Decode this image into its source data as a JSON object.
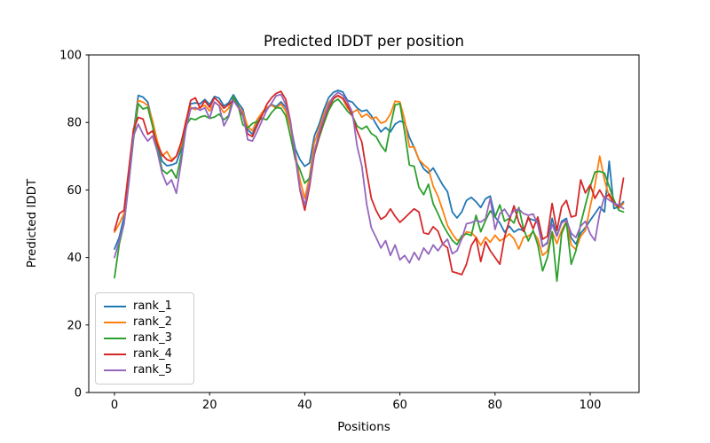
{
  "figure": {
    "title": "Predicted lDDT per position",
    "xlabel": "Positions",
    "ylabel": "Predicted lDDT"
  },
  "chart_data": {
    "type": "line",
    "title": "Predicted lDDT per position",
    "xlabel": "Positions",
    "ylabel": "Predicted lDDT",
    "ylim": [
      0,
      100
    ],
    "xlim": [
      -5.35,
      112.35
    ],
    "x_ticks": [
      0,
      20,
      40,
      60,
      80,
      100
    ],
    "y_ticks": [
      0,
      20,
      40,
      60,
      80,
      100
    ],
    "grid": false,
    "legend_position": "lower left",
    "x": {
      "start": 0,
      "end": 107,
      "step": 1
    },
    "series": [
      {
        "name": "rank_1",
        "color": "#1f77b4",
        "values": [
          42.5,
          46,
          52,
          63,
          77,
          88,
          87.5,
          86,
          80,
          73.5,
          68.5,
          67.2,
          67.4,
          68,
          72,
          80,
          85.5,
          85.8,
          85.5,
          86.8,
          85.3,
          87.7,
          87.2,
          84.9,
          85.8,
          88.2,
          85.8,
          83.9,
          77.9,
          76.5,
          79.7,
          82.5,
          84.1,
          85.3,
          84.7,
          86.1,
          84.5,
          79.4,
          72.2,
          69,
          67,
          68,
          75.9,
          79.4,
          83.7,
          87.3,
          88.9,
          89.5,
          89,
          86.5,
          86,
          84.3,
          83.3,
          83.7,
          82,
          79.5,
          77.2,
          78.5,
          77.2,
          79.5,
          80.4,
          80,
          75.6,
          72.5,
          69,
          66.3,
          65,
          66.5,
          64,
          61.5,
          59.5,
          53.5,
          51.7,
          53.5,
          56.9,
          57.8,
          56.5,
          54.8,
          57.4,
          58.2,
          52,
          50.2,
          47.5,
          49.3,
          47.5,
          48.4,
          48,
          51.6,
          51.1,
          50.7,
          43.3,
          44.2,
          51.6,
          46.3,
          50.7,
          51.6,
          45.8,
          44,
          47.2,
          48.9,
          51,
          53,
          55,
          53.5,
          68.5,
          54.5,
          55,
          56.5
        ]
      },
      {
        "name": "rank_2",
        "color": "#ff7f0e",
        "values": [
          47.5,
          50,
          53,
          64,
          76,
          86.5,
          86,
          85,
          80.5,
          74.5,
          70,
          71.4,
          69,
          70,
          73,
          80.5,
          84.5,
          83.8,
          84.5,
          85.1,
          83.4,
          85.9,
          85.1,
          82.9,
          84.2,
          87,
          84.9,
          83.1,
          78.8,
          77.5,
          80.9,
          82.9,
          84.5,
          85.1,
          84.2,
          85.5,
          83.4,
          78.5,
          70.9,
          63,
          57.5,
          64,
          74,
          78,
          82.3,
          85.9,
          87.5,
          87.8,
          87,
          84.2,
          82.9,
          83.8,
          81.6,
          82.5,
          81.1,
          81.6,
          79.8,
          80.3,
          82.5,
          86.3,
          86.1,
          80.7,
          72.7,
          72.8,
          69,
          67.5,
          66.3,
          61.1,
          58.1,
          54,
          49.5,
          47,
          45.1,
          45.5,
          47.6,
          47.3,
          46,
          43.6,
          46,
          44.5,
          46.6,
          44.9,
          45.7,
          47,
          45.5,
          42.5,
          46,
          46.3,
          47.6,
          45.4,
          40.6,
          41.9,
          47.6,
          44.1,
          48,
          50.7,
          43.7,
          42.4,
          46.3,
          48,
          55,
          61.5,
          70,
          63,
          58,
          56,
          54.5,
          56
        ]
      },
      {
        "name": "rank_3",
        "color": "#2ca02c",
        "values": [
          34,
          44,
          50,
          62,
          75,
          85.5,
          84,
          84.5,
          78.9,
          72.5,
          66,
          64.8,
          66,
          63.5,
          70,
          79,
          81.2,
          80.8,
          81.6,
          82,
          81.2,
          81.6,
          82.5,
          80.8,
          82,
          87.7,
          84.9,
          79.3,
          78.4,
          79.7,
          80.3,
          81.2,
          80.8,
          82.9,
          84.4,
          84.2,
          82,
          75.9,
          69,
          66,
          62,
          63.5,
          70.5,
          75.4,
          79.6,
          83.5,
          86,
          86.9,
          85.2,
          83.3,
          82,
          78.9,
          78,
          78.9,
          76.7,
          75.8,
          73.2,
          71.4,
          78.9,
          85.2,
          85.6,
          77.1,
          67.4,
          67,
          60.8,
          58.6,
          61.7,
          55.9,
          53,
          49.8,
          47.3,
          45.1,
          43.8,
          46.4,
          47,
          46.5,
          52.5,
          47.6,
          51,
          53.8,
          52,
          55.6,
          50.7,
          51.6,
          50.2,
          54.8,
          48.4,
          44.9,
          48,
          43.7,
          36,
          40,
          47.6,
          33,
          47,
          50.5,
          38,
          42,
          50,
          55.5,
          61,
          65.3,
          65.5,
          65,
          61,
          57,
          54,
          53.5
        ]
      },
      {
        "name": "rank_4",
        "color": "#d62728",
        "values": [
          48,
          53,
          54,
          66,
          78,
          81.5,
          81,
          76.5,
          77.5,
          73.5,
          70.5,
          69,
          68.5,
          70,
          74,
          80,
          86.5,
          87.3,
          84.2,
          86.4,
          84.5,
          87.3,
          86,
          84.2,
          85.3,
          86.6,
          84.5,
          82,
          76.6,
          75.8,
          79.1,
          82.1,
          85.3,
          87.3,
          88.6,
          89.2,
          86.8,
          80.3,
          70,
          60,
          54,
          61,
          70.5,
          76,
          80.6,
          84.4,
          87,
          88,
          87.1,
          85,
          82,
          77.5,
          74.2,
          65.4,
          57.5,
          53.9,
          51.3,
          52.2,
          54.4,
          52.2,
          50.4,
          51.7,
          53.1,
          54.4,
          53.5,
          47.3,
          46.9,
          49.1,
          47.8,
          44,
          42.9,
          35.8,
          35.4,
          34.9,
          38,
          43.5,
          45.8,
          38.8,
          44.7,
          42,
          40,
          38,
          46,
          51,
          55.3,
          50.4,
          47.7,
          52,
          48.5,
          52,
          45.4,
          46.3,
          56,
          48,
          55,
          56.9,
          52,
          52.4,
          63,
          59.1,
          61.5,
          57.5,
          60,
          57.5,
          58.8,
          56.2,
          55,
          63.5
        ]
      },
      {
        "name": "rank_5",
        "color": "#9467bd",
        "values": [
          40,
          45,
          50,
          62,
          76,
          79.5,
          76.5,
          74.5,
          76,
          71.5,
          65,
          61.5,
          63,
          59,
          68,
          78,
          84,
          84.4,
          83.6,
          84.3,
          81.2,
          86.1,
          84.9,
          79,
          81.6,
          86.6,
          84.4,
          82.5,
          74.9,
          74.5,
          77.3,
          80.5,
          83.6,
          85.7,
          87.9,
          88.3,
          85.3,
          80,
          70.5,
          60.5,
          55.5,
          62,
          71.2,
          76.9,
          81.1,
          85.1,
          87.7,
          88.9,
          88,
          86,
          83,
          73,
          67.1,
          55.9,
          48.8,
          45.9,
          42.8,
          45,
          40.6,
          43.7,
          39.3,
          40.6,
          38.4,
          41.5,
          39.3,
          42.8,
          41,
          43.7,
          42,
          44,
          45.4,
          41.1,
          42,
          45.5,
          50,
          50.3,
          51,
          50.5,
          51.5,
          57.5,
          48.3,
          53,
          54.3,
          52,
          53.9,
          54.3,
          53,
          52.5,
          52.9,
          49.8,
          43.2,
          44.5,
          49.8,
          46.3,
          50.2,
          51.1,
          47.2,
          45.9,
          49.3,
          50.7,
          47,
          45,
          53,
          58,
          57,
          56,
          55.5,
          54.5
        ]
      }
    ]
  }
}
